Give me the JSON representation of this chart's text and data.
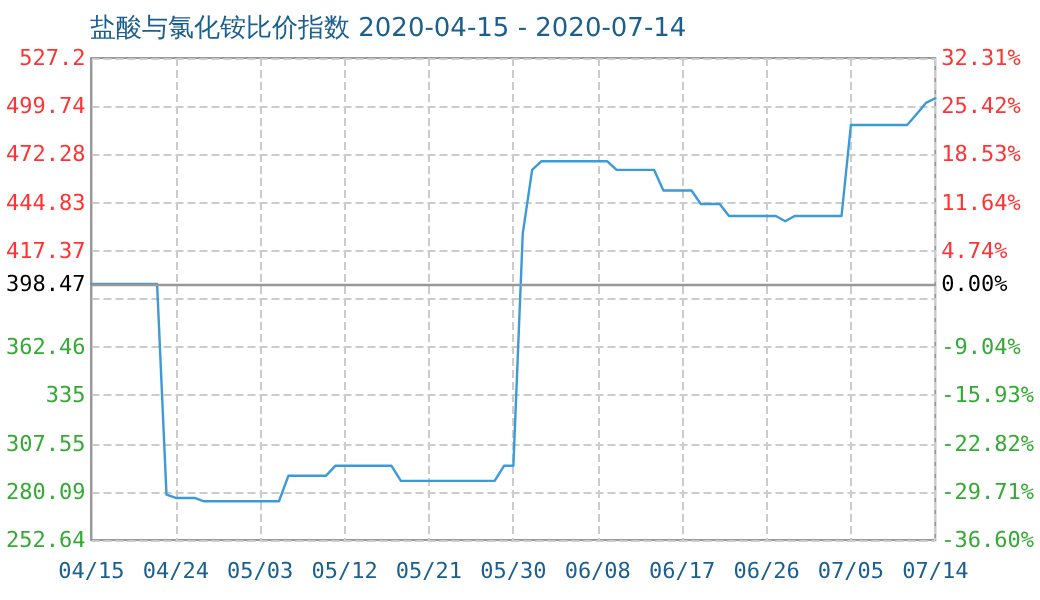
{
  "chart_data": {
    "type": "line",
    "title": "盐酸与氯化铵比价指数 2020-04-15 - 2020-07-14",
    "marker": "none",
    "grid": true,
    "line_style": "solid",
    "xlim": [
      "2020-04-15",
      "2020-07-14"
    ],
    "xticks": [
      {
        "value": "2020-04-15",
        "label": "04/15"
      },
      {
        "value": "2020-04-24",
        "label": "04/24"
      },
      {
        "value": "2020-05-03",
        "label": "05/03"
      },
      {
        "value": "2020-05-12",
        "label": "05/12"
      },
      {
        "value": "2020-05-21",
        "label": "05/21"
      },
      {
        "value": "2020-05-30",
        "label": "05/30"
      },
      {
        "value": "2020-06-08",
        "label": "06/08"
      },
      {
        "value": "2020-06-17",
        "label": "06/17"
      },
      {
        "value": "2020-06-26",
        "label": "06/26"
      },
      {
        "value": "2020-07-05",
        "label": "07/05"
      },
      {
        "value": "2020-07-14",
        "label": "07/14"
      }
    ],
    "ylim": [
      252.64,
      527.2
    ],
    "yticks": [
      252.64,
      280.09,
      307.55,
      335,
      362.46,
      {
        "value": 389.92,
        "label": null
      },
      398.47,
      417.37,
      444.83,
      472.28,
      499.74,
      527.2
    ],
    "y2lim": [
      -36.6,
      32.31
    ],
    "y2ticks": [
      {
        "value": -36.6,
        "label": "-36.60%"
      },
      {
        "value": -29.71,
        "label": "-29.71%"
      },
      {
        "value": -22.82,
        "label": "-22.82%"
      },
      {
        "value": -15.93,
        "label": "-15.93%"
      },
      {
        "value": -9.04,
        "label": "-9.04%"
      },
      {
        "value": 0,
        "label": "0.00%"
      },
      {
        "value": 4.74,
        "label": "4.74%"
      },
      {
        "value": 11.64,
        "label": "11.64%"
      },
      {
        "value": 18.53,
        "label": "18.53%"
      },
      {
        "value": 25.42,
        "label": "25.42%"
      },
      {
        "value": 32.31,
        "label": "32.31%"
      }
    ],
    "ref_lines": [
      {
        "axis": "y",
        "value": 398.47,
        "color": "#999999"
      }
    ],
    "series": [
      {
        "color": "#3c9ad9",
        "x": [
          "2020-04-15",
          "2020-04-22",
          "2020-04-23",
          "2020-04-24",
          "2020-04-26",
          "2020-04-27",
          "2020-05-05",
          "2020-05-06",
          "2020-05-10",
          "2020-05-11",
          "2020-05-17",
          "2020-05-18",
          "2020-05-28",
          "2020-05-29",
          "2020-05-30",
          "2020-05-31",
          "2020-06-01",
          "2020-06-02",
          "2020-06-09",
          "2020-06-10",
          "2020-06-14",
          "2020-06-15",
          "2020-06-18",
          "2020-06-19",
          "2020-06-21",
          "2020-06-22",
          "2020-06-27",
          "2020-06-28",
          "2020-06-29",
          "2020-07-04",
          "2020-07-05",
          "2020-07-11",
          "2020-07-12",
          "2020-07-13",
          "2020-07-14"
        ],
        "values": [
          398.47,
          398.47,
          278.5,
          276.6,
          276.6,
          274.7,
          274.7,
          289.2,
          289.2,
          294.9,
          294.9,
          286.3,
          286.3,
          294.9,
          294.9,
          427.2,
          463.5,
          468.4,
          468.4,
          463.5,
          463.5,
          451.7,
          451.7,
          444.0,
          444.0,
          437.2,
          437.2,
          434.2,
          437.2,
          437.2,
          489.0,
          489.0,
          495.2,
          501.6,
          504.3
        ]
      }
    ]
  }
}
